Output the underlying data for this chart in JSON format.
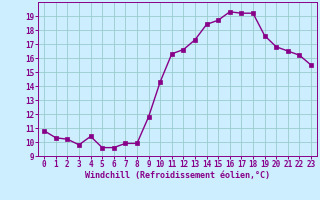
{
  "x": [
    0,
    1,
    2,
    3,
    4,
    5,
    6,
    7,
    8,
    9,
    10,
    11,
    12,
    13,
    14,
    15,
    16,
    17,
    18,
    19,
    20,
    21,
    22,
    23
  ],
  "y": [
    10.8,
    10.3,
    10.2,
    9.8,
    10.4,
    9.6,
    9.6,
    9.9,
    9.9,
    11.8,
    14.3,
    16.3,
    16.6,
    17.3,
    18.4,
    18.7,
    19.3,
    19.2,
    19.2,
    17.6,
    16.8,
    16.5,
    16.2,
    15.5
  ],
  "line_color": "#880088",
  "bg_color": "#cceeff",
  "grid_color": "#99cccc",
  "xlabel": "Windchill (Refroidissement éolien,°C)",
  "xlabel_color": "#880088",
  "tick_color": "#880088",
  "spine_color": "#880088",
  "ylim": [
    9,
    20
  ],
  "xlim": [
    -0.5,
    23.5
  ],
  "yticks": [
    9,
    10,
    11,
    12,
    13,
    14,
    15,
    16,
    17,
    18,
    19
  ],
  "xticks": [
    0,
    1,
    2,
    3,
    4,
    5,
    6,
    7,
    8,
    9,
    10,
    11,
    12,
    13,
    14,
    15,
    16,
    17,
    18,
    19,
    20,
    21,
    22,
    23
  ],
  "marker_size": 2.5,
  "line_width": 1.0,
  "tick_fontsize": 5.5,
  "xlabel_fontsize": 6.0
}
